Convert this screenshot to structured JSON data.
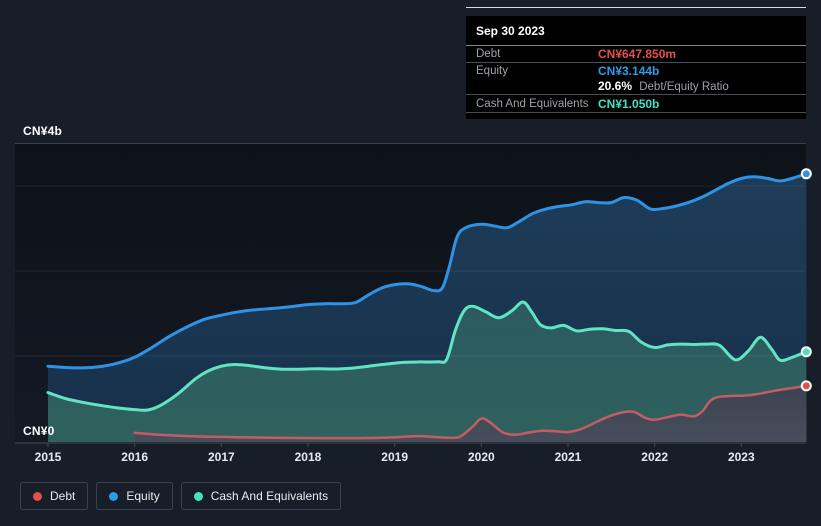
{
  "y_axis": {
    "top_label": "CN¥4b",
    "bottom_label": "CN¥0"
  },
  "x_axis": {
    "labels": [
      "2015",
      "2016",
      "2017",
      "2018",
      "2019",
      "2020",
      "2021",
      "2022",
      "2023"
    ]
  },
  "tooltip": {
    "date": "Sep 30 2023",
    "rows": [
      {
        "label": "Debt",
        "value": "CN¥647.850m",
        "value_color": "#e0514e"
      },
      {
        "label": "Equity",
        "value": "CN¥3.144b",
        "value_color": "#2f9ce8"
      },
      {
        "label": "Cash And Equivalents",
        "value": "CN¥1.050b",
        "value_color": "#43e2c1"
      }
    ],
    "ratio_value": "20.6%",
    "ratio_label": "Debt/Equity Ratio"
  },
  "legend": {
    "items": [
      {
        "label": "Debt",
        "color": "#e2504c"
      },
      {
        "label": "Equity",
        "color": "#2b9ce8"
      },
      {
        "label": "Cash And Equivalents",
        "color": "#43e2c1"
      }
    ]
  },
  "chart_data": {
    "type": "area",
    "title": "Debt to Equity History",
    "x_range_years": [
      2015.0,
      2023.75
    ],
    "ylim_billions": [
      0,
      4
    ],
    "gridline_values_b": [
      1,
      2,
      3
    ],
    "grid": true,
    "legend_position": "bottom-left",
    "series": [
      {
        "name": "Equity",
        "unit": "CN¥ billions",
        "line_color": "#2e93e6",
        "marker_color": "#2e93e6",
        "fill_top": "#1e3c58",
        "fill_bottom": "#17304a",
        "line_width": 3,
        "points_year_value_b": [
          [
            2015,
            0.88
          ],
          [
            2015.2,
            0.865
          ],
          [
            2015.4,
            0.86
          ],
          [
            2015.6,
            0.875
          ],
          [
            2015.8,
            0.915
          ],
          [
            2016,
            0.985
          ],
          [
            2016.2,
            1.1
          ],
          [
            2016.4,
            1.23
          ],
          [
            2016.6,
            1.34
          ],
          [
            2016.8,
            1.43
          ],
          [
            2017,
            1.48
          ],
          [
            2017.2,
            1.52
          ],
          [
            2017.4,
            1.545
          ],
          [
            2017.6,
            1.56
          ],
          [
            2017.8,
            1.58
          ],
          [
            2018,
            1.605
          ],
          [
            2018.2,
            1.615
          ],
          [
            2018.4,
            1.615
          ],
          [
            2018.55,
            1.63
          ],
          [
            2018.7,
            1.72
          ],
          [
            2018.85,
            1.8
          ],
          [
            2019,
            1.84
          ],
          [
            2019.15,
            1.85
          ],
          [
            2019.3,
            1.82
          ],
          [
            2019.45,
            1.77
          ],
          [
            2019.55,
            1.8
          ],
          [
            2019.63,
            2.05
          ],
          [
            2019.72,
            2.4
          ],
          [
            2019.82,
            2.51
          ],
          [
            2020,
            2.55
          ],
          [
            2020.15,
            2.53
          ],
          [
            2020.3,
            2.51
          ],
          [
            2020.45,
            2.59
          ],
          [
            2020.6,
            2.68
          ],
          [
            2020.75,
            2.73
          ],
          [
            2020.9,
            2.76
          ],
          [
            2021.05,
            2.78
          ],
          [
            2021.2,
            2.815
          ],
          [
            2021.35,
            2.805
          ],
          [
            2021.5,
            2.805
          ],
          [
            2021.65,
            2.865
          ],
          [
            2021.8,
            2.83
          ],
          [
            2021.95,
            2.73
          ],
          [
            2022.1,
            2.735
          ],
          [
            2022.25,
            2.765
          ],
          [
            2022.4,
            2.81
          ],
          [
            2022.55,
            2.87
          ],
          [
            2022.7,
            2.95
          ],
          [
            2022.85,
            3.03
          ],
          [
            2023,
            3.09
          ],
          [
            2023.15,
            3.11
          ],
          [
            2023.3,
            3.09
          ],
          [
            2023.45,
            3.06
          ],
          [
            2023.6,
            3.095
          ],
          [
            2023.75,
            3.144
          ]
        ]
      },
      {
        "name": "Cash And Equivalents",
        "unit": "CN¥ billions",
        "line_color": "#5fe5c4",
        "marker_color": "#49e2c0",
        "fill_top": "#2c5a60",
        "fill_bottom": "#2f615d",
        "line_width": 3,
        "points_year_value_b": [
          [
            2015,
            0.57
          ],
          [
            2015.2,
            0.5
          ],
          [
            2015.4,
            0.455
          ],
          [
            2015.6,
            0.42
          ],
          [
            2015.8,
            0.39
          ],
          [
            2016,
            0.37
          ],
          [
            2016.15,
            0.365
          ],
          [
            2016.3,
            0.42
          ],
          [
            2016.5,
            0.555
          ],
          [
            2016.7,
            0.73
          ],
          [
            2016.85,
            0.825
          ],
          [
            2017,
            0.88
          ],
          [
            2017.15,
            0.9
          ],
          [
            2017.3,
            0.89
          ],
          [
            2017.5,
            0.862
          ],
          [
            2017.7,
            0.845
          ],
          [
            2017.9,
            0.845
          ],
          [
            2018.1,
            0.85
          ],
          [
            2018.3,
            0.847
          ],
          [
            2018.5,
            0.857
          ],
          [
            2018.7,
            0.88
          ],
          [
            2018.9,
            0.905
          ],
          [
            2019.1,
            0.925
          ],
          [
            2019.3,
            0.93
          ],
          [
            2019.5,
            0.932
          ],
          [
            2019.6,
            0.96
          ],
          [
            2019.7,
            1.3
          ],
          [
            2019.8,
            1.53
          ],
          [
            2019.9,
            1.585
          ],
          [
            2020.05,
            1.52
          ],
          [
            2020.2,
            1.45
          ],
          [
            2020.35,
            1.53
          ],
          [
            2020.48,
            1.635
          ],
          [
            2020.58,
            1.52
          ],
          [
            2020.68,
            1.37
          ],
          [
            2020.8,
            1.33
          ],
          [
            2020.95,
            1.36
          ],
          [
            2021.1,
            1.295
          ],
          [
            2021.25,
            1.315
          ],
          [
            2021.4,
            1.32
          ],
          [
            2021.55,
            1.3
          ],
          [
            2021.7,
            1.29
          ],
          [
            2021.85,
            1.16
          ],
          [
            2022,
            1.1
          ],
          [
            2022.15,
            1.13
          ],
          [
            2022.3,
            1.14
          ],
          [
            2022.45,
            1.135
          ],
          [
            2022.6,
            1.14
          ],
          [
            2022.75,
            1.125
          ],
          [
            2022.93,
            0.955
          ],
          [
            2023.08,
            1.06
          ],
          [
            2023.22,
            1.22
          ],
          [
            2023.35,
            1.08
          ],
          [
            2023.45,
            0.95
          ],
          [
            2023.6,
            0.99
          ],
          [
            2023.75,
            1.05
          ]
        ]
      },
      {
        "name": "Debt",
        "unit": "CN¥ billions",
        "line_color": "#c25d65",
        "marker_color": "#e0514e",
        "fill_top": "#3d4350",
        "fill_bottom": "#464e5c",
        "line_width": 2.5,
        "points_year_value_b": [
          [
            2016,
            0.095
          ],
          [
            2016.2,
            0.08
          ],
          [
            2016.4,
            0.067
          ],
          [
            2016.6,
            0.058
          ],
          [
            2016.8,
            0.052
          ],
          [
            2017,
            0.048
          ],
          [
            2017.3,
            0.042
          ],
          [
            2017.6,
            0.038
          ],
          [
            2017.9,
            0.035
          ],
          [
            2018.2,
            0.034
          ],
          [
            2018.5,
            0.034
          ],
          [
            2018.8,
            0.037
          ],
          [
            2019,
            0.043
          ],
          [
            2019.15,
            0.053
          ],
          [
            2019.3,
            0.058
          ],
          [
            2019.45,
            0.048
          ],
          [
            2019.6,
            0.04
          ],
          [
            2019.75,
            0.05
          ],
          [
            2019.9,
            0.17
          ],
          [
            2020,
            0.265
          ],
          [
            2020.1,
            0.22
          ],
          [
            2020.25,
            0.1
          ],
          [
            2020.4,
            0.075
          ],
          [
            2020.55,
            0.1
          ],
          [
            2020.7,
            0.12
          ],
          [
            2020.85,
            0.115
          ],
          [
            2021,
            0.105
          ],
          [
            2021.15,
            0.14
          ],
          [
            2021.3,
            0.21
          ],
          [
            2021.45,
            0.28
          ],
          [
            2021.6,
            0.33
          ],
          [
            2021.75,
            0.345
          ],
          [
            2021.9,
            0.27
          ],
          [
            2022,
            0.25
          ],
          [
            2022.15,
            0.28
          ],
          [
            2022.3,
            0.31
          ],
          [
            2022.45,
            0.29
          ],
          [
            2022.55,
            0.35
          ],
          [
            2022.65,
            0.48
          ],
          [
            2022.75,
            0.52
          ],
          [
            2022.9,
            0.53
          ],
          [
            2023.05,
            0.535
          ],
          [
            2023.2,
            0.555
          ],
          [
            2023.35,
            0.585
          ],
          [
            2023.5,
            0.61
          ],
          [
            2023.6,
            0.625
          ],
          [
            2023.75,
            0.648
          ]
        ]
      }
    ]
  }
}
